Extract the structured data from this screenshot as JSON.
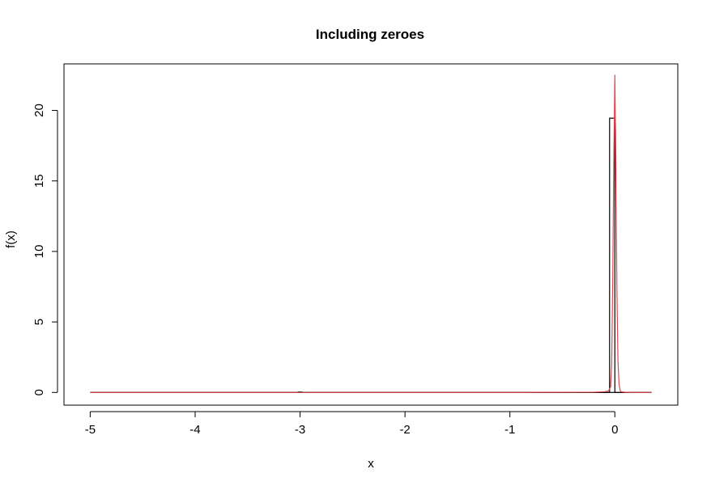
{
  "chart_data": {
    "type": "histogram",
    "title": "Including zeroes",
    "xlabel": "x",
    "ylabel": "f(x)",
    "xlim": [
      -5.25,
      0.6
    ],
    "ylim": [
      -0.9,
      23.3
    ],
    "x_ticks": [
      -5,
      -4,
      -3,
      -2,
      -1,
      0
    ],
    "x_tick_labels": [
      "-5",
      "-4",
      "-3",
      "-2",
      "-1",
      "0"
    ],
    "y_ticks": [
      0,
      5,
      10,
      15,
      20
    ],
    "y_tick_labels": [
      "0",
      "5",
      "10",
      "15",
      "20"
    ],
    "grid": false,
    "box": true,
    "histogram": {
      "color": "#000000",
      "bin_width": 0.05,
      "bins": [
        {
          "x0": -5.0,
          "x1": -0.05,
          "density": 0.0
        },
        {
          "x0": -0.05,
          "x1": 0.0,
          "density": 19.45
        },
        {
          "x0": 0.0,
          "x1": 0.35,
          "density": 0.0
        }
      ]
    },
    "density_curve": {
      "color": "#e0484f",
      "x": [
        -5.0,
        -3.0,
        -1.0,
        -0.2,
        -0.1,
        -0.06,
        -0.04,
        -0.03,
        -0.02,
        -0.01,
        0.0,
        0.01,
        0.02,
        0.03,
        0.04,
        0.05,
        0.06,
        0.1,
        0.2,
        0.35
      ],
      "y": [
        0.0,
        0.0,
        0.0,
        0.02,
        0.05,
        0.1,
        0.4,
        2.0,
        8.0,
        16.5,
        22.5,
        16.0,
        7.0,
        2.2,
        0.6,
        0.15,
        0.05,
        0.01,
        0.0,
        0.0
      ]
    },
    "small_marks": [
      {
        "x": -3.0,
        "y": 0.05
      }
    ]
  }
}
